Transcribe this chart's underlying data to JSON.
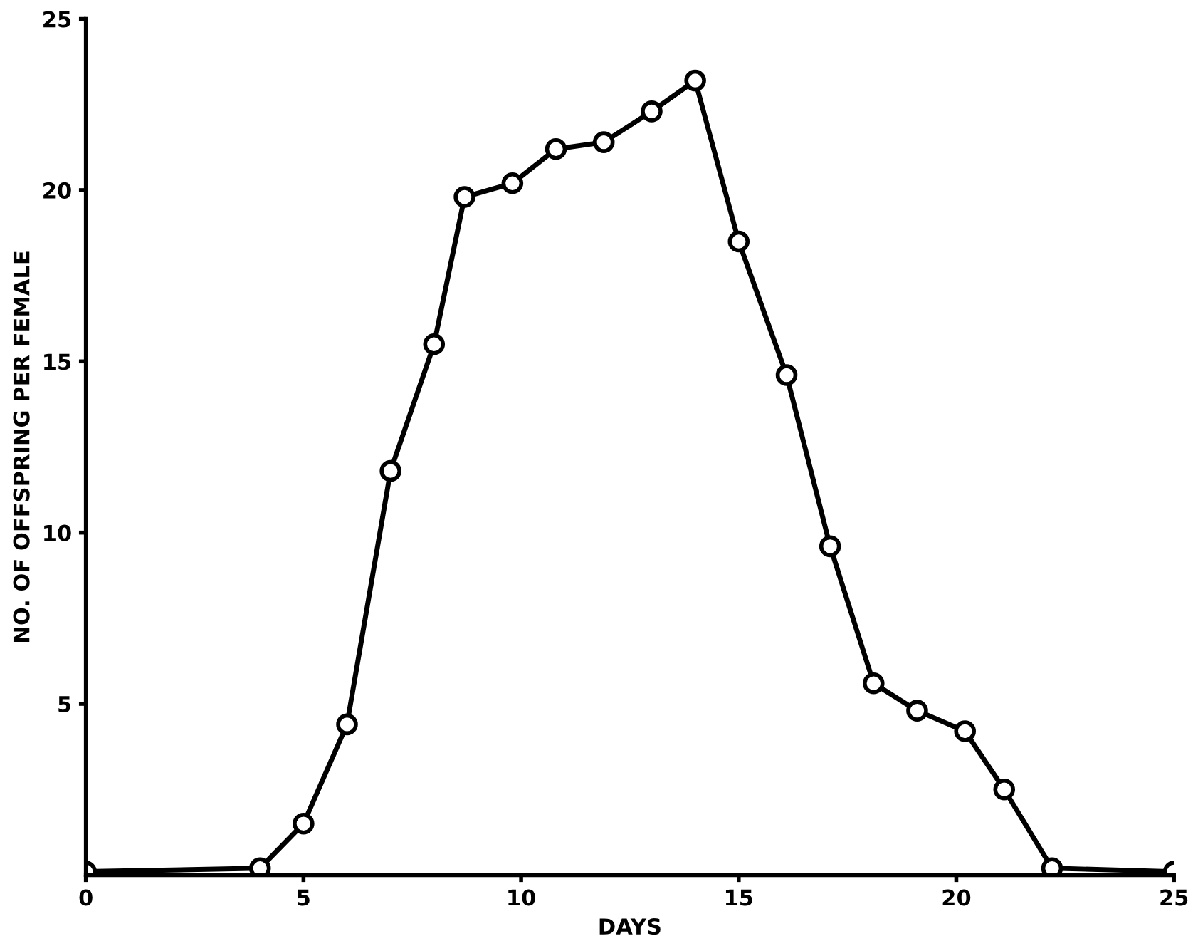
{
  "chart_data": {
    "type": "line",
    "xlabel": "DAYS",
    "ylabel": "NO. OF OFFSPRING PER FEMALE",
    "x": [
      0,
      4,
      5,
      6,
      7,
      8,
      8.7,
      9.8,
      10.8,
      11.9,
      13,
      14,
      15,
      16.1,
      17.1,
      18.1,
      19.1,
      20.2,
      21.1,
      22.2,
      25
    ],
    "series": [
      {
        "color": "#000000",
        "values": [
          0.1,
          0.2,
          1.5,
          4.4,
          11.8,
          15.5,
          19.8,
          20.2,
          21.2,
          21.4,
          22.3,
          23.2,
          18.5,
          14.6,
          9.6,
          5.6,
          4.8,
          4.2,
          2.5,
          0.2,
          0.1
        ]
      }
    ],
    "xlim": [
      0,
      25
    ],
    "ylim": [
      0,
      25
    ],
    "xticks": [
      0,
      5,
      10,
      15,
      20,
      25
    ],
    "yticks": [
      5,
      10,
      15,
      20,
      25
    ],
    "marker": "circle",
    "line_style": "solid",
    "grid": false
  }
}
